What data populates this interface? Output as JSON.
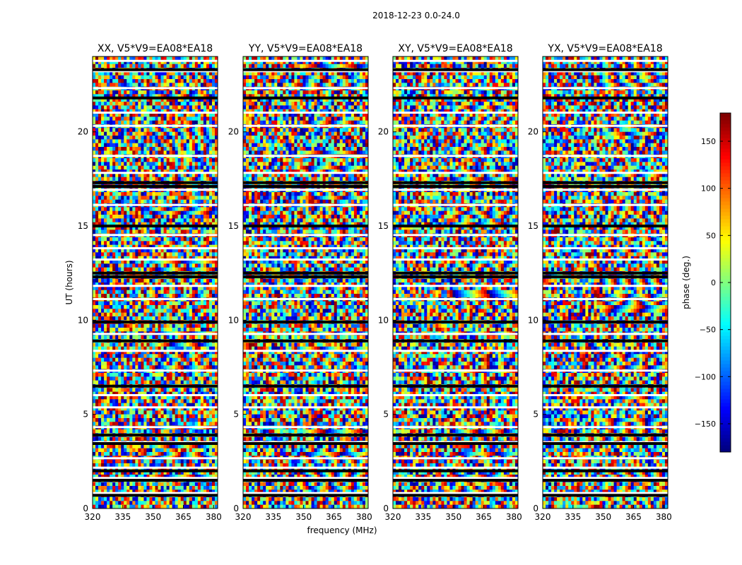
{
  "chart_data": {
    "type": "heatmap",
    "suptitle": "2018-12-23 0.0-24.0",
    "xlabel": "frequency (MHz)",
    "ylabel": "UT (hours)",
    "xlim": [
      320,
      382
    ],
    "ylim": [
      0,
      24
    ],
    "xticks": [
      320,
      335,
      350,
      365,
      380
    ],
    "yticks": [
      0,
      5,
      10,
      15,
      20
    ],
    "panels": [
      {
        "title": "XX, V5*V9=EA08*EA18",
        "polarization": "XX"
      },
      {
        "title": "YY, V5*V9=EA08*EA18",
        "polarization": "YY"
      },
      {
        "title": "XY, V5*V9=EA08*EA18",
        "polarization": "XY"
      },
      {
        "title": "YX, V5*V9=EA08*EA18",
        "polarization": "YX"
      }
    ],
    "colorbar": {
      "label": "phase (deg.)",
      "range": [
        -180,
        180
      ],
      "ticks": [
        150,
        100,
        50,
        0,
        -50,
        -100,
        -150
      ],
      "tick_labels": [
        "150",
        "100",
        "50",
        "0",
        "−50",
        "−100",
        "−150"
      ],
      "colormap": "jet"
    },
    "flagged_rows_ut_hours": [
      0.7,
      1.5,
      2.0,
      3.45,
      3.9,
      6.5,
      8.9,
      9.9,
      12.3,
      12.5,
      15.0,
      17.1,
      17.3,
      21.8,
      23.3
    ],
    "blank_rows_ut_hours": [
      0.8,
      1.6,
      2.15,
      2.65,
      3.5,
      4.3,
      5.35,
      6.0,
      7.3,
      8.35,
      9.25,
      11.1,
      11.8,
      13.2,
      13.8,
      14.5,
      16.1,
      16.9,
      17.8,
      18.7,
      20.3,
      21.0,
      22.3,
      23.2,
      23.75
    ]
  }
}
